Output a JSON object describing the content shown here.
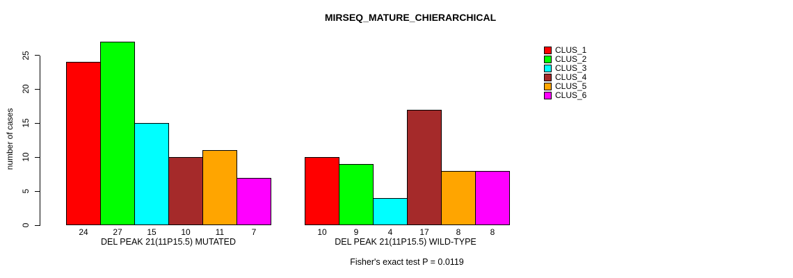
{
  "chart_data": {
    "type": "bar",
    "title": "MIRSEQ_MATURE_CHIERARCHICAL",
    "ylabel": "number of cases",
    "xlabel": "",
    "ylim": [
      0,
      25
    ],
    "yticks": [
      0,
      5,
      10,
      15,
      20,
      25
    ],
    "grid": false,
    "legend_position": "right-outside",
    "bar_border_color": "#000000",
    "background_color": "#FFFFFF",
    "series": [
      {
        "name": "CLUS_1",
        "color": "#FF0000"
      },
      {
        "name": "CLUS_2",
        "color": "#00FF00"
      },
      {
        "name": "CLUS_3",
        "color": "#00FFFF"
      },
      {
        "name": "CLUS_4",
        "color": "#A52A2A"
      },
      {
        "name": "CLUS_5",
        "color": "#FFA500"
      },
      {
        "name": "CLUS_6",
        "color": "#FF00FF"
      }
    ],
    "groups": [
      {
        "label": "DEL PEAK 21(11P15.5) MUTATED",
        "values": [
          24,
          27,
          15,
          10,
          11,
          7
        ]
      },
      {
        "label": "DEL PEAK 21(11P15.5) WILD-TYPE",
        "values": [
          10,
          9,
          4,
          17,
          8,
          8
        ]
      }
    ],
    "bar_value_labels_shown": true,
    "annotation": "Fisher's exact test P = 0.0119"
  }
}
